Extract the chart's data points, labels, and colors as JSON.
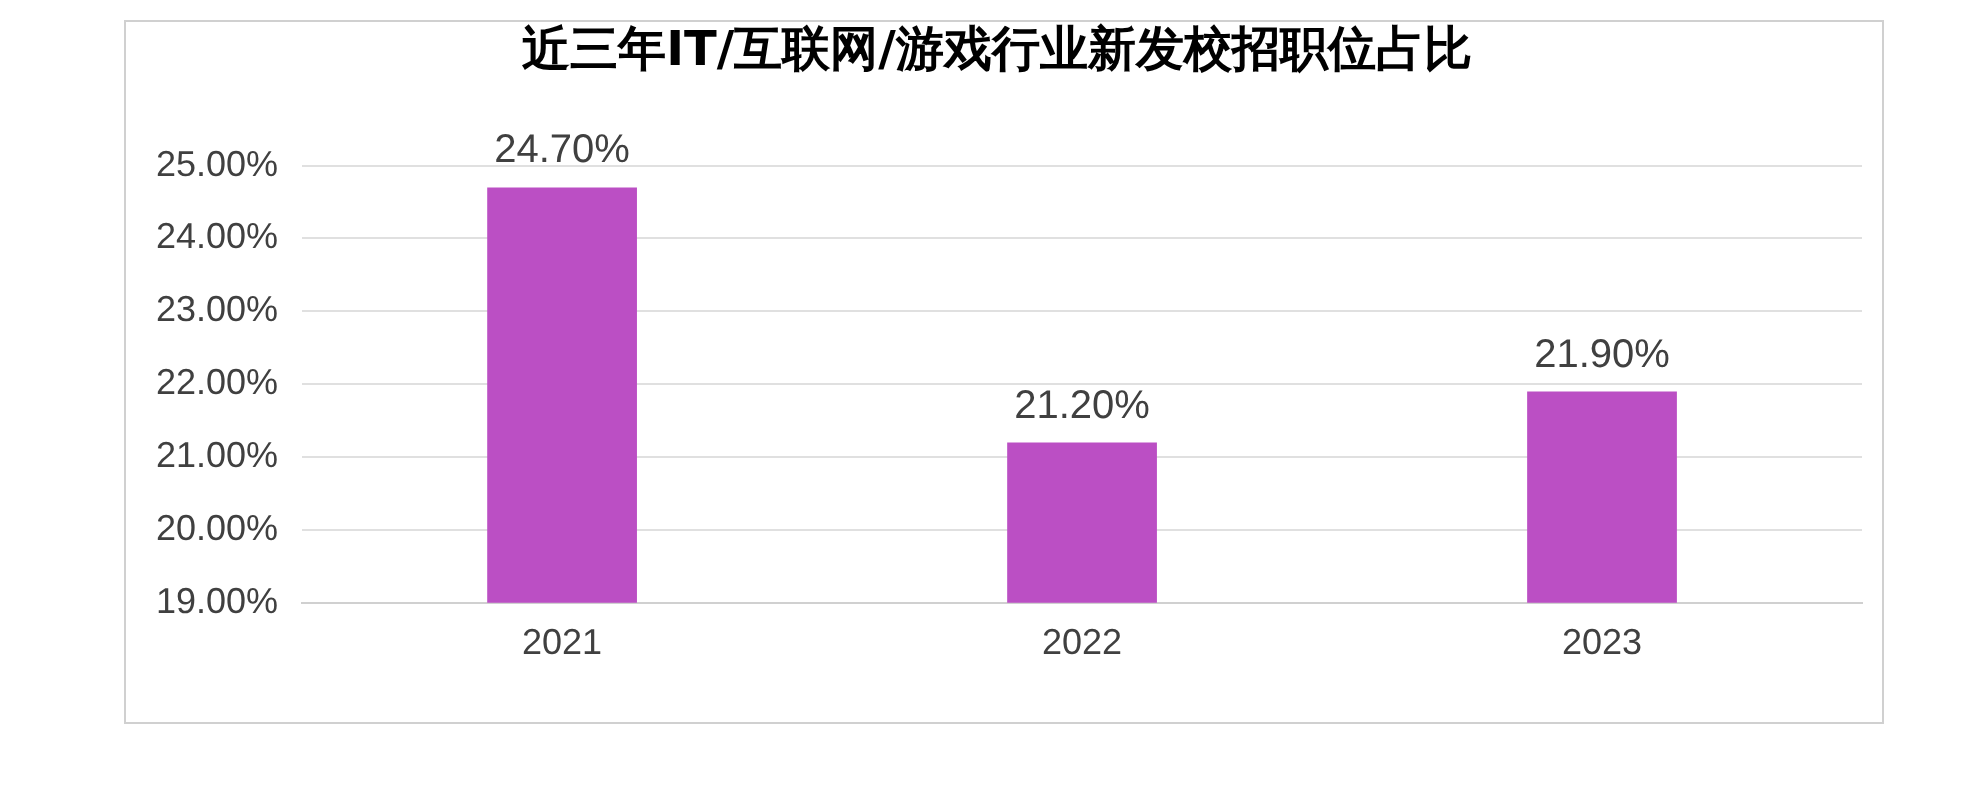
{
  "chart_data": {
    "type": "bar",
    "title": "近三年IT/互联网/游戏行业新发校招职位占比",
    "categories": [
      "2021",
      "2022",
      "2023"
    ],
    "values": [
      24.7,
      21.2,
      21.9
    ],
    "value_labels": [
      "24.70%",
      "21.20%",
      "21.90%"
    ],
    "color": "#bb4fc4",
    "ylim": [
      19,
      25
    ],
    "yticks": [
      {
        "value": 19,
        "label": "19.00%"
      },
      {
        "value": 20,
        "label": "20.00%"
      },
      {
        "value": 21,
        "label": "21.00%"
      },
      {
        "value": 22,
        "label": "22.00%"
      },
      {
        "value": 23,
        "label": "23.00%"
      },
      {
        "value": 24,
        "label": "24.00%"
      },
      {
        "value": 25,
        "label": "25.00%"
      }
    ],
    "grid": "y",
    "legend": false
  }
}
